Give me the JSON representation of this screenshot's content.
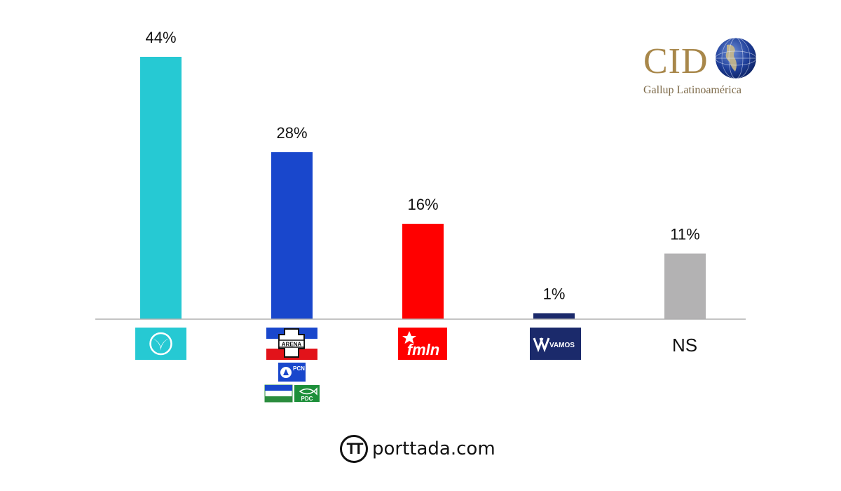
{
  "chart_data": {
    "type": "bar",
    "categories": [
      "Nuevas Ideas",
      "ARENA · PCN · PDC",
      "FMLN",
      "VAMOS",
      "NS"
    ],
    "values": [
      44,
      28,
      16,
      1,
      11
    ],
    "value_labels": [
      "44%",
      "28%",
      "16%",
      "1%",
      "11%"
    ],
    "colors": [
      "#26c9d3",
      "#1947cc",
      "#ff0000",
      "#1b2a6b",
      "#b3b2b3"
    ],
    "ylim": [
      0,
      44
    ],
    "grid": false,
    "legend": "none",
    "xlabel": "",
    "ylabel": "",
    "ns_label": "NS",
    "party_logos": {
      "arena": "ARENA",
      "pcn": "PCN",
      "pdc": "PDC",
      "fmln": "fmln",
      "vamos": "VAMOS"
    }
  },
  "source_logo": {
    "name": "CID",
    "subtitle": "Gallup Latinoamérica",
    "icon": "globe-icon"
  },
  "footer_brand": {
    "text": "porttada.com",
    "icon": "porttada-logo-icon"
  }
}
